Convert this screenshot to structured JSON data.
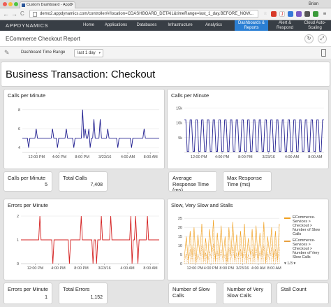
{
  "browser": {
    "tab_title": "Custom Dashboard - AppD",
    "tab_close": "×",
    "user": "Brian",
    "nav_back": "←",
    "nav_forward": "→",
    "nav_reload": "C",
    "url": "demo2.appdynamics.com/controller/#/location=CDASHBOARD_DETAIL&timeRange=last_1_day.BEFORE_NOW..."
  },
  "app": {
    "logo": "APPDYNAMICS",
    "nav": [
      {
        "label": "Home"
      },
      {
        "label": "Applications"
      },
      {
        "label": "Databases"
      },
      {
        "label": "Infrastructure"
      },
      {
        "label": "Analytics"
      },
      {
        "label": "Dashboards & Reports"
      },
      {
        "label": "Alert & Respond"
      },
      {
        "label": "Cloud Auto-Scaling"
      }
    ]
  },
  "dashboard": {
    "title": "ECommerce Checkout Report",
    "refresh_icon": "↻",
    "share_icon": "⤢",
    "time_range_label": "Dashboard Time Range",
    "time_range_value": "last 1 day",
    "chevron": "▾"
  },
  "widgets": {
    "bt_title": "Business Transaction: Checkout",
    "cpm_title": "Calls per Minute",
    "cpm_metric_label": "Calls per Minute",
    "cpm_metric_value": "5",
    "total_calls_label": "Total Calls",
    "total_calls_value": "7,408",
    "avg_rt_label": "Average Response Time (ms)",
    "max_rt_label": "Max Response Time (ms)",
    "epm_title": "Errors per Minute",
    "ssvs_title": "Slow, Very Slow and Stalls",
    "ssvs_legend": [
      "ECommerce-Services > Checkout > Number of Slow Calls",
      "ECommerce-Services > Checkout > Number of Very Slow Calls"
    ],
    "ssvs_pager": "▾ 1/3 ▾",
    "epm_metric_label": "Errors per Minute",
    "epm_metric_value": "1",
    "total_errors_label": "Total Errors",
    "total_errors_value": "1,152",
    "slow_calls_label": "Number of Slow Calls",
    "very_slow_label": "Number of Very Slow Calls",
    "stall_label": "Stall Count"
  },
  "chart_data": [
    {
      "type": "line",
      "title": "Calls per Minute",
      "x_ticks": [
        "12:00 PM",
        "4:00 PM",
        "8:00 PM",
        "3/23/16",
        "4:00 AM",
        "8:00 AM"
      ],
      "y_ticks": [
        "4",
        "6",
        "8"
      ],
      "ylim": [
        3.5,
        8.5
      ],
      "grid": true,
      "colors": {
        "line": "#1f1d8f"
      },
      "series": [
        {
          "values": [
            5,
            5,
            5,
            5,
            5,
            4,
            5,
            5,
            5,
            5,
            5,
            6,
            5,
            5,
            5,
            5,
            5,
            5,
            5,
            5,
            5,
            5,
            5,
            5,
            6,
            5,
            5,
            5,
            4,
            5,
            5,
            5,
            5,
            5,
            5,
            6,
            5,
            5,
            5,
            5,
            5,
            4,
            5,
            5,
            5,
            5,
            5,
            5,
            8,
            5,
            6,
            5,
            5,
            6,
            4,
            5,
            5,
            7,
            5,
            5,
            5,
            5,
            7,
            5,
            5,
            5,
            5,
            5,
            6,
            5,
            5,
            5,
            5,
            5,
            5,
            5,
            4,
            5,
            5,
            5,
            5,
            5,
            5,
            5,
            5,
            5,
            5,
            4,
            5,
            5,
            5,
            5,
            5,
            5,
            5,
            5,
            5,
            6,
            5,
            5,
            5,
            5,
            5,
            5,
            5,
            5,
            5,
            5,
            5,
            5
          ]
        }
      ]
    },
    {
      "type": "line",
      "title": "Calls per Minute",
      "x_ticks": [
        "12:00 PM",
        "4:00 PM",
        "8:00 PM",
        "3/23/16",
        "4:00 AM",
        "8:00 AM"
      ],
      "y_ticks": [
        "5k",
        "10k",
        "15k"
      ],
      "ylim": [
        0,
        16000
      ],
      "grid": true,
      "colors": {
        "line": "#1f1d8f"
      },
      "series": [
        {
          "values": [
            11000,
            11000,
            300,
            300,
            11000,
            11000,
            300,
            300,
            11000,
            11000,
            300,
            300,
            11000,
            11000,
            300,
            300,
            11000,
            11000,
            300,
            300,
            11000,
            11000,
            300,
            300,
            11000,
            11000,
            300,
            300,
            11000,
            11000,
            300,
            300,
            11000,
            11000,
            300,
            300,
            11000,
            11000,
            300,
            300,
            11000,
            11000,
            300,
            300,
            11000,
            11000,
            300,
            300,
            11000,
            11000,
            300,
            300,
            11000,
            11000,
            300,
            300,
            11000,
            11000,
            300,
            300,
            11000,
            11000,
            300,
            300,
            11000,
            11000,
            300,
            300,
            11000,
            11000,
            300,
            300,
            11000,
            11000,
            300,
            300,
            11000,
            11000,
            300,
            300,
            11000,
            11000,
            300,
            300,
            11000,
            11000,
            300,
            300,
            11000,
            11000,
            300,
            300,
            11000,
            11000,
            300,
            300,
            11000,
            11000
          ]
        }
      ]
    },
    {
      "type": "line",
      "title": "Errors per Minute",
      "x_ticks": [
        "12:00 PM",
        "4:00 PM",
        "8:00 PM",
        "3/23/16",
        "4:00 AM",
        "8:00 AM"
      ],
      "y_ticks": [
        "0",
        "1",
        "2"
      ],
      "ylim": [
        0,
        2
      ],
      "grid": true,
      "colors": {
        "line": "#d42020"
      },
      "series": [
        {
          "values": [
            1,
            1,
            1,
            1,
            1,
            1,
            1,
            1,
            1,
            1,
            1,
            1,
            1,
            1,
            1,
            1,
            2,
            1,
            1,
            1,
            1,
            1,
            1,
            1,
            1,
            1,
            1,
            0,
            1,
            1,
            1,
            1,
            1,
            1,
            1,
            1,
            1,
            1,
            1,
            1,
            1,
            0,
            1,
            1,
            1,
            1,
            1,
            1,
            1,
            1,
            1,
            2,
            1,
            1,
            1,
            1,
            1,
            1,
            1,
            1,
            1,
            0,
            1,
            1,
            0,
            1,
            1,
            1,
            2,
            1,
            1,
            1,
            1,
            1,
            1,
            1,
            2,
            1,
            1,
            1,
            1,
            1,
            1,
            1,
            1,
            1,
            1,
            1,
            1,
            1,
            1,
            1,
            1,
            2,
            0,
            1,
            1,
            2,
            1,
            0,
            1,
            1,
            1,
            1,
            1,
            1,
            1,
            2,
            1,
            1,
            1,
            1,
            1,
            1,
            1,
            1,
            1,
            1
          ]
        }
      ]
    },
    {
      "type": "line",
      "title": "Slow, Very Slow and Stalls",
      "x_ticks": [
        "12:00 PM",
        "4:00 PM",
        "8:00 PM",
        "3/23/16",
        "4:00 AM",
        "8:00 AM"
      ],
      "y_ticks": [
        "0",
        "5",
        "10",
        "15",
        "20",
        "25"
      ],
      "ylim": [
        0,
        27
      ],
      "grid": true,
      "colors": {
        "slow": "#f0a020",
        "very_slow": "#e8a040"
      },
      "series": [
        {
          "name": "ECommerce-Services > Checkout > Number of Slow Calls",
          "values": [
            3,
            15,
            2,
            18,
            4,
            20,
            1,
            16,
            5,
            22,
            3,
            14,
            2,
            19,
            6,
            24,
            2,
            17,
            4,
            21,
            3,
            15,
            1,
            20,
            5,
            23,
            2,
            16,
            4,
            18,
            3,
            22,
            2,
            14,
            5,
            19,
            3,
            21,
            2,
            17,
            4,
            23,
            1,
            15,
            5,
            20,
            3,
            18,
            2,
            22
          ]
        },
        {
          "name": "ECommerce-Services > Checkout > Number of Very Slow Calls",
          "values": [
            1,
            6,
            0,
            8,
            2,
            9,
            0,
            5,
            2,
            10,
            1,
            6,
            0,
            7,
            3,
            11,
            1,
            7,
            2,
            8,
            1,
            5,
            0,
            9,
            2,
            10,
            1,
            6,
            2,
            8,
            1,
            9,
            0,
            5,
            2,
            8,
            1,
            9,
            1,
            7,
            2,
            10,
            0,
            6,
            2,
            9,
            1,
            8,
            1,
            9
          ]
        }
      ]
    }
  ]
}
